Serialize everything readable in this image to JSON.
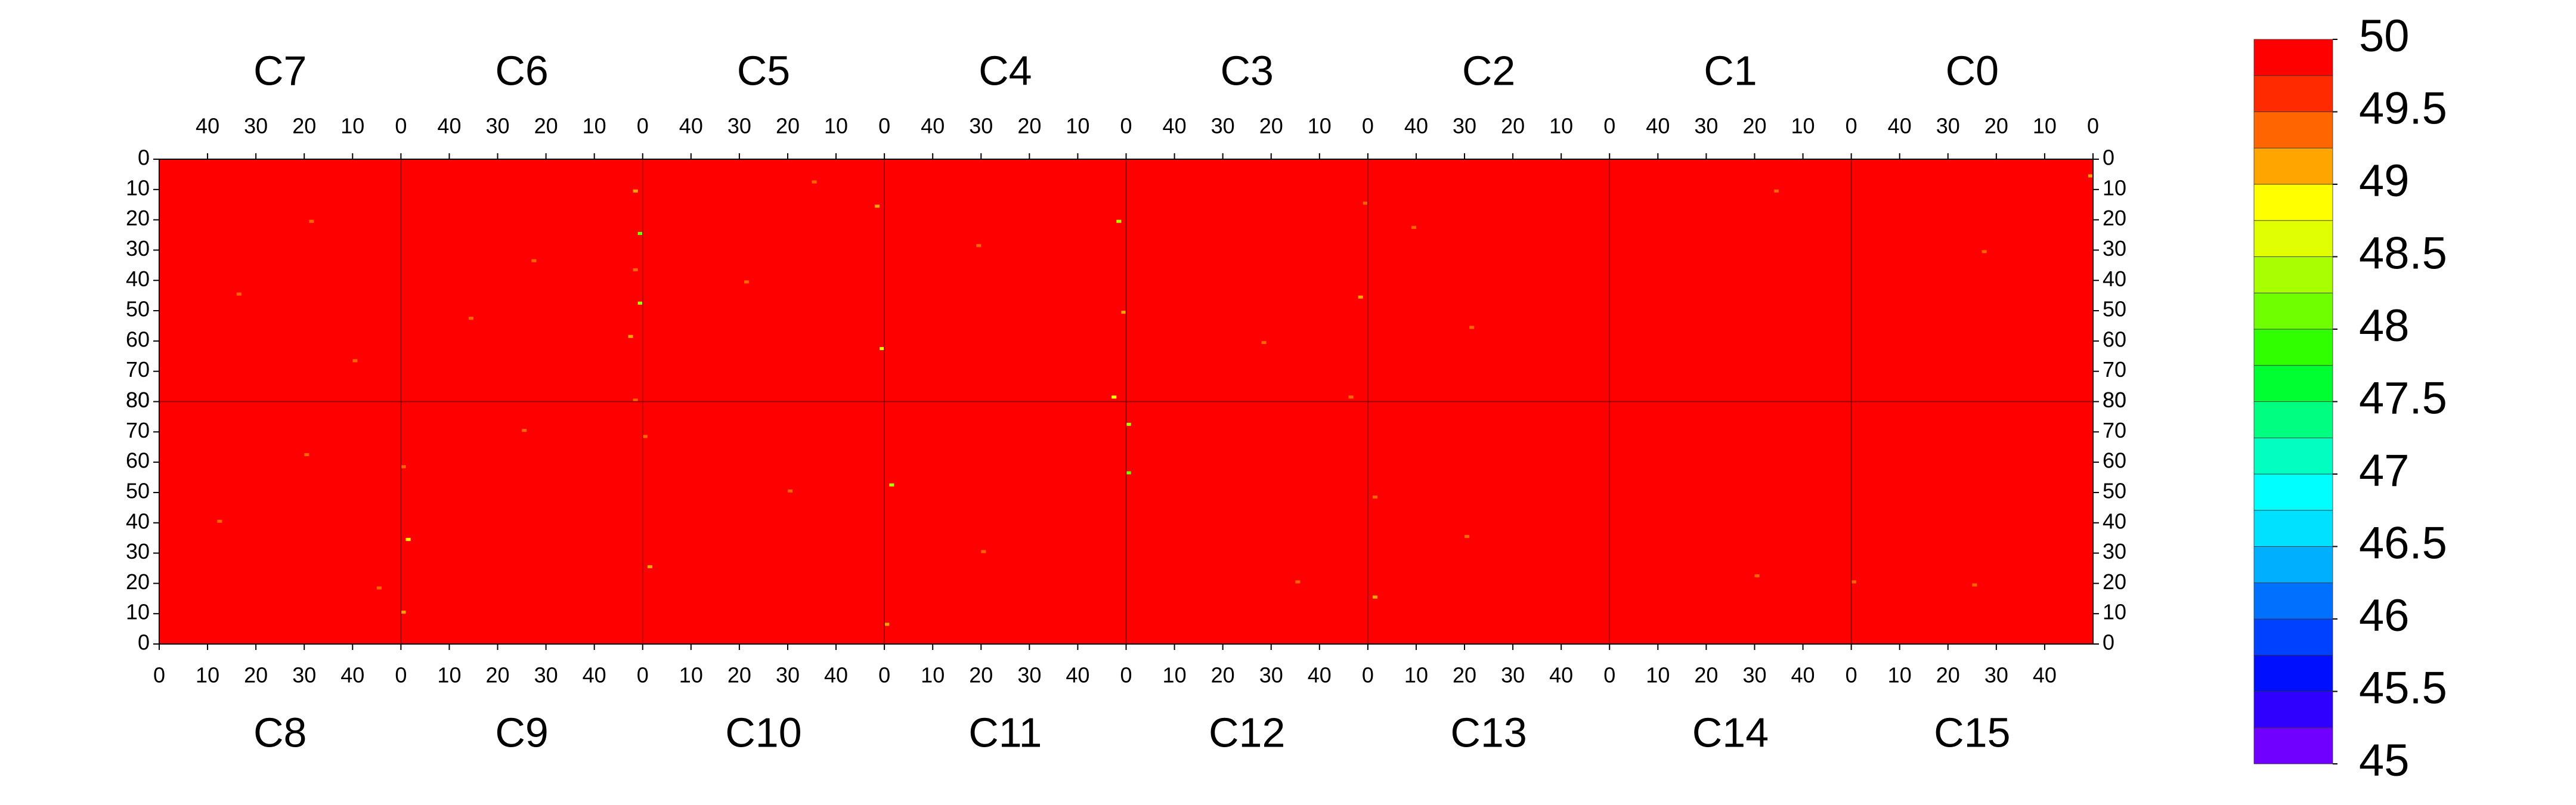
{
  "chart_data": {
    "type": "heatmap",
    "panels": [
      "C0",
      "C1",
      "C2",
      "C3",
      "C4",
      "C5",
      "C6",
      "C7",
      "C8",
      "C9",
      "C10",
      "C11",
      "C12",
      "C13",
      "C14",
      "C15"
    ],
    "xlim": [
      0,
      50
    ],
    "xticks": [
      0,
      10,
      20,
      30,
      40
    ],
    "ylim": [
      0,
      80
    ],
    "yticks": [
      0,
      10,
      20,
      30,
      40,
      50,
      60,
      70,
      80
    ],
    "fill_value": 50,
    "zlim": [
      45,
      50
    ],
    "zlevels": [
      45,
      45.25,
      45.5,
      45.75,
      46,
      46.25,
      46.5,
      46.75,
      47,
      47.25,
      47.5,
      47.75,
      48,
      48.25,
      48.5,
      48.75,
      49,
      49.25,
      49.5,
      49.75,
      50
    ],
    "zcolors": [
      "#7000ff",
      "#3000ff",
      "#0010ff",
      "#0040ff",
      "#0070ff",
      "#00b0ff",
      "#00e0ff",
      "#00ffff",
      "#00ffc0",
      "#00ff80",
      "#00ff30",
      "#30ff00",
      "#70ff00",
      "#a8ff00",
      "#e0ff00",
      "#ffff00",
      "#ffa500",
      "#ff6600",
      "#ff2a00",
      "#ff0000"
    ],
    "zticks": [
      45,
      45.5,
      46,
      46.5,
      47,
      47.5,
      48,
      48.5,
      49,
      49.5,
      50
    ],
    "cells": [
      {
        "panel": 6,
        "x": 1,
        "y": 10,
        "value": 49.2
      },
      {
        "panel": 6,
        "x": 0,
        "y": 24,
        "value": 48.2
      },
      {
        "panel": 6,
        "x": 1,
        "y": 36,
        "value": 49.4
      },
      {
        "panel": 6,
        "x": 0,
        "y": 47,
        "value": 48.4
      },
      {
        "panel": 6,
        "x": 2,
        "y": 58,
        "value": 49.2
      },
      {
        "panel": 6,
        "x": 1,
        "y": 79,
        "value": 49.4
      },
      {
        "panel": 6,
        "x": 22,
        "y": 33,
        "value": 49.4
      },
      {
        "panel": 6,
        "x": 35,
        "y": 52,
        "value": 49.3
      },
      {
        "panel": 7,
        "x": 18,
        "y": 20,
        "value": 49.4
      },
      {
        "panel": 7,
        "x": 33,
        "y": 44,
        "value": 49.3
      },
      {
        "panel": 7,
        "x": 9,
        "y": 66,
        "value": 49.4
      },
      {
        "panel": 5,
        "x": 1,
        "y": 15,
        "value": 49.2
      },
      {
        "panel": 5,
        "x": 0,
        "y": 62,
        "value": 48.6
      },
      {
        "panel": 5,
        "x": 28,
        "y": 40,
        "value": 49.4
      },
      {
        "panel": 5,
        "x": 14,
        "y": 7,
        "value": 49.4
      },
      {
        "panel": 4,
        "x": 1,
        "y": 20,
        "value": 48.4
      },
      {
        "panel": 4,
        "x": 0,
        "y": 50,
        "value": 49.2
      },
      {
        "panel": 4,
        "x": 2,
        "y": 78,
        "value": 48.9
      },
      {
        "panel": 4,
        "x": 30,
        "y": 28,
        "value": 49.4
      },
      {
        "panel": 3,
        "x": 0,
        "y": 14,
        "value": 49.3
      },
      {
        "panel": 3,
        "x": 1,
        "y": 45,
        "value": 49.2
      },
      {
        "panel": 3,
        "x": 21,
        "y": 60,
        "value": 49.4
      },
      {
        "panel": 3,
        "x": 3,
        "y": 78,
        "value": 49.4
      },
      {
        "panel": 2,
        "x": 40,
        "y": 22,
        "value": 49.4
      },
      {
        "panel": 2,
        "x": 28,
        "y": 55,
        "value": 49.3
      },
      {
        "panel": 1,
        "x": 15,
        "y": 10,
        "value": 49.4
      },
      {
        "panel": 0,
        "x": 0,
        "y": 5,
        "value": 49.2
      },
      {
        "panel": 0,
        "x": 22,
        "y": 30,
        "value": 49.4
      },
      {
        "panel": 8,
        "x": 12,
        "y": 40,
        "value": 49.4
      },
      {
        "panel": 8,
        "x": 30,
        "y": 62,
        "value": 49.3
      },
      {
        "panel": 8,
        "x": 45,
        "y": 18,
        "value": 49.4
      },
      {
        "panel": 9,
        "x": 0,
        "y": 10,
        "value": 49.2
      },
      {
        "panel": 9,
        "x": 1,
        "y": 34,
        "value": 48.9
      },
      {
        "panel": 9,
        "x": 0,
        "y": 58,
        "value": 49.3
      },
      {
        "panel": 9,
        "x": 25,
        "y": 70,
        "value": 49.4
      },
      {
        "panel": 10,
        "x": 1,
        "y": 25,
        "value": 49.2
      },
      {
        "panel": 10,
        "x": 30,
        "y": 50,
        "value": 49.4
      },
      {
        "panel": 10,
        "x": 0,
        "y": 68,
        "value": 49.3
      },
      {
        "panel": 11,
        "x": 0,
        "y": 6,
        "value": 49.2
      },
      {
        "panel": 11,
        "x": 1,
        "y": 52,
        "value": 48.4
      },
      {
        "panel": 11,
        "x": 20,
        "y": 30,
        "value": 49.4
      },
      {
        "panel": 12,
        "x": 0,
        "y": 72,
        "value": 48.4
      },
      {
        "panel": 12,
        "x": 0,
        "y": 56,
        "value": 48.2
      },
      {
        "panel": 12,
        "x": 35,
        "y": 20,
        "value": 49.4
      },
      {
        "panel": 13,
        "x": 1,
        "y": 15,
        "value": 49.2
      },
      {
        "panel": 13,
        "x": 1,
        "y": 48,
        "value": 49.3
      },
      {
        "panel": 13,
        "x": 20,
        "y": 35,
        "value": 49.4
      },
      {
        "panel": 14,
        "x": 30,
        "y": 22,
        "value": 49.4
      },
      {
        "panel": 15,
        "x": 0,
        "y": 20,
        "value": 49.3
      },
      {
        "panel": 15,
        "x": 25,
        "y": 19,
        "value": 49.4
      }
    ]
  }
}
